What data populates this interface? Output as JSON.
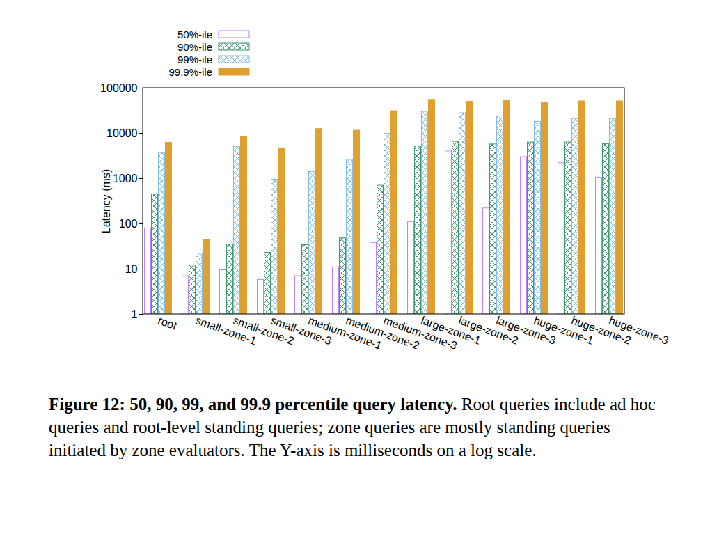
{
  "chart_data": {
    "type": "bar",
    "title": "Figure 12: 50, 90, 99, and 99.9 percentile query latency.",
    "caption": "Root queries include ad hoc queries and root-level standing queries; zone queries are mostly standing queries initiated by zone evaluators. The Y-axis is milliseconds on a log scale.",
    "y_label": "Latency (ms)",
    "categories": [
      "root",
      "small-zone-1",
      "small-zone-2",
      "small-zone-3",
      "medium-zone-1",
      "medium-zone-2",
      "medium-zone-3",
      "large-zone-1",
      "large-zone-2",
      "large-zone-3",
      "huge-zone-1",
      "huge-zone-2",
      "huge-zone-3"
    ],
    "series": [
      {
        "name": "50%-ile",
        "color": "#c080ff",
        "values": [
          80,
          7,
          9.5,
          5.8,
          7,
          11,
          38,
          110,
          4000,
          220,
          3000,
          2200,
          1050
        ]
      },
      {
        "name": "90%-ile",
        "color": "#3f9a6e",
        "values": [
          450,
          12,
          35,
          23,
          34,
          48,
          700,
          5200,
          6500,
          5700,
          6300,
          6300,
          5800
        ]
      },
      {
        "name": "99%-ile",
        "color": "#7fbfe6",
        "values": [
          3700,
          22,
          5000,
          950,
          1400,
          2600,
          9800,
          30000,
          28000,
          24000,
          18000,
          21000,
          21000
        ]
      },
      {
        "name": "99.9%-ile",
        "color": "#e0a030",
        "values": [
          6200,
          45,
          8500,
          4700,
          12500,
          11500,
          31000,
          55000,
          50000,
          54000,
          47000,
          51000,
          51000
        ]
      }
    ],
    "ylim": [
      1,
      100000
    ],
    "yticks": [
      1,
      10,
      100,
      1000,
      10000,
      100000
    ],
    "log": "y",
    "grid": false,
    "legend": "top-left"
  }
}
